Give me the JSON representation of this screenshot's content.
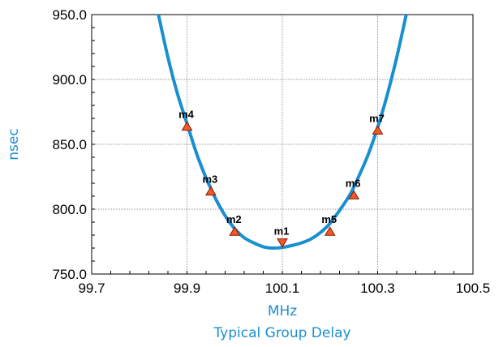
{
  "chart_data": {
    "type": "line",
    "title": "Typical Group Delay",
    "xlabel": "MHz",
    "ylabel": "nsec",
    "xlim": [
      99.7,
      100.5
    ],
    "ylim": [
      750.0,
      950.0
    ],
    "xticks": [
      "99.7",
      "99.9",
      "100.1",
      "100.3",
      "100.5"
    ],
    "yticks": [
      "750.0",
      "800.0",
      "850.0",
      "900.0",
      "950.0"
    ],
    "xtick_values": [
      99.7,
      99.9,
      100.1,
      100.3,
      100.5
    ],
    "ytick_values": [
      750.0,
      800.0,
      850.0,
      900.0,
      950.0
    ],
    "grid": true,
    "series": [
      {
        "color": "#1a8fd0",
        "x": [
          99.84,
          99.86,
          99.88,
          99.9,
          99.92,
          99.94,
          99.95,
          99.96,
          99.98,
          100.0,
          100.02,
          100.04,
          100.06,
          100.08,
          100.1,
          100.12,
          100.14,
          100.16,
          100.18,
          100.2,
          100.22,
          100.24,
          100.25,
          100.26,
          100.28,
          100.3,
          100.32,
          100.34,
          100.36
        ],
        "y": [
          950.0,
          917.0,
          889.0,
          866.0,
          843.0,
          824.0,
          816.0,
          808.0,
          795.0,
          785.0,
          778.0,
          774.0,
          771.0,
          770.0,
          770.5,
          772.0,
          774.0,
          777.0,
          782.0,
          789.0,
          799.0,
          810.0,
          817.0,
          825.0,
          842.0,
          863.0,
          888.0,
          917.0,
          950.0
        ]
      }
    ],
    "markers": [
      {
        "label": "m1",
        "x": 100.1,
        "y": 774.0,
        "shape": "down"
      },
      {
        "label": "m2",
        "x": 100.0,
        "y": 783.0,
        "shape": "up"
      },
      {
        "label": "m3",
        "x": 99.95,
        "y": 814.0,
        "shape": "up"
      },
      {
        "label": "m4",
        "x": 99.9,
        "y": 864.0,
        "shape": "up"
      },
      {
        "label": "m5",
        "x": 100.2,
        "y": 783.0,
        "shape": "up"
      },
      {
        "label": "m6",
        "x": 100.25,
        "y": 811.0,
        "shape": "up"
      },
      {
        "label": "m7",
        "x": 100.3,
        "y": 861.0,
        "shape": "up"
      }
    ],
    "colors": {
      "curve": "#1a8fd0",
      "marker_fill": "#f05a28",
      "marker_stroke": "#8b1a00",
      "axis_title": "#1a8fd0",
      "grid": "#9a9a9a"
    }
  }
}
